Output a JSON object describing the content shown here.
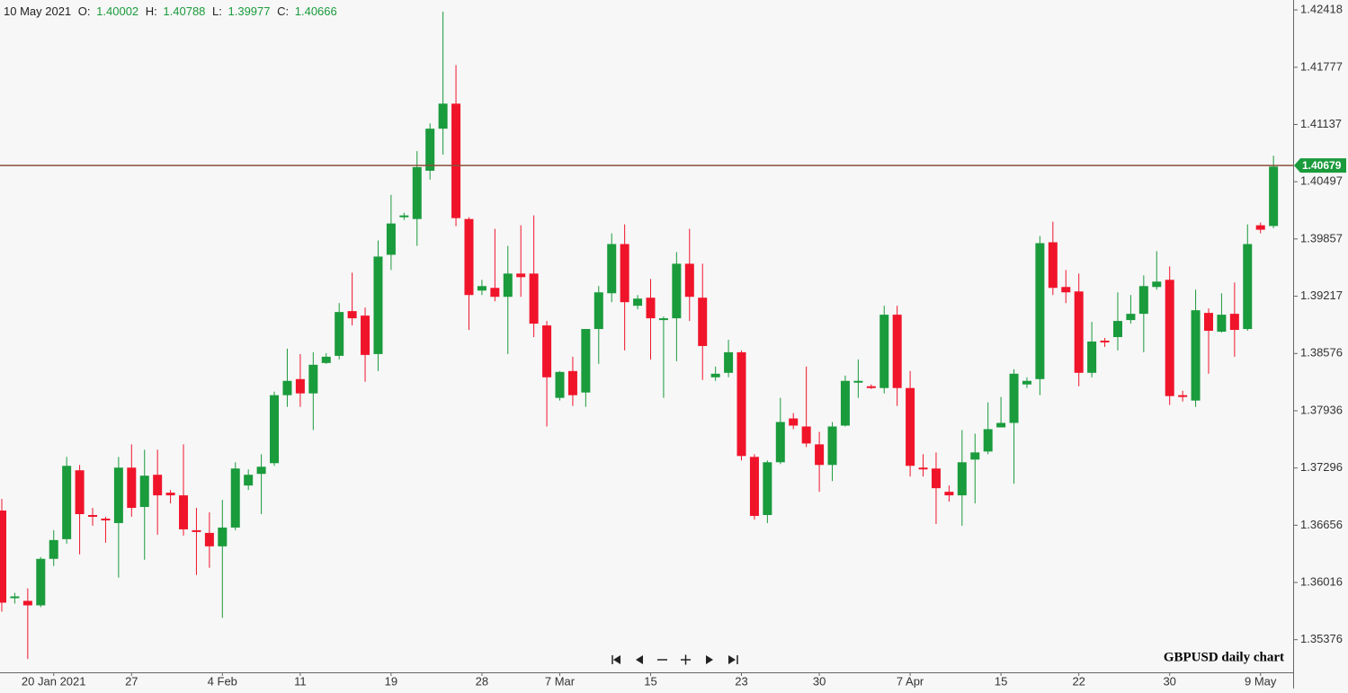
{
  "chart_data": {
    "type": "candlestick",
    "date_label": "10 May 2021",
    "ohlc_labels": [
      "O:",
      "H:",
      "L:",
      "C:"
    ],
    "annotation": "GBPUSD daily chart",
    "up_color": "#1a9b3c",
    "down_color": "#f0142a",
    "last_price": 1.40679,
    "last_price_line_color": "#8b4f3a",
    "categories": [
      null,
      null,
      null,
      null,
      "20 Jan 2021",
      null,
      null,
      null,
      null,
      null,
      "27",
      null,
      null,
      null,
      null,
      null,
      null,
      "4 Feb",
      null,
      null,
      null,
      null,
      null,
      "11",
      null,
      null,
      null,
      null,
      null,
      null,
      "19",
      null,
      null,
      null,
      null,
      null,
      null,
      "28",
      null,
      null,
      null,
      null,
      null,
      "7 Mar",
      null,
      null,
      null,
      null,
      null,
      null,
      "15",
      null,
      null,
      null,
      null,
      null,
      null,
      "23",
      null,
      null,
      null,
      null,
      null,
      "30",
      null,
      null,
      null,
      null,
      null,
      null,
      "7 Apr",
      null,
      null,
      null,
      null,
      null,
      null,
      "15",
      null,
      null,
      null,
      null,
      null,
      "22",
      null,
      null,
      null,
      null,
      null,
      null,
      "30",
      null,
      null,
      null,
      null,
      null,
      null,
      "9 May",
      null
    ],
    "open": [
      1.3682,
      1.3584,
      1.3581,
      1.3576,
      1.3628,
      1.365,
      1.3727,
      1.3677,
      1.3673,
      1.3668,
      1.373,
      1.3686,
      1.3722,
      1.3702,
      1.3699,
      1.366,
      1.3657,
      1.3642,
      1.3663,
      1.371,
      1.3723,
      1.3735,
      1.3811,
      1.3829,
      1.3813,
      1.3847,
      1.3855,
      1.3905,
      1.39,
      1.3857,
      1.3968,
      1.401,
      1.4008,
      1.4062,
      1.4109,
      1.4137,
      1.4008,
      1.3928,
      1.3931,
      1.3921,
      1.3947,
      1.3947,
      1.3889,
      1.3808,
      1.3838,
      1.3814,
      1.3885,
      1.3925,
      1.398,
      1.3911,
      1.392,
      1.3895,
      1.3897,
      1.3958,
      1.392,
      1.3831,
      1.3836,
      1.3859,
      1.3742,
      1.3677,
      1.3736,
      1.3785,
      1.3776,
      1.3756,
      1.3733,
      1.3777,
      1.3825,
      1.3821,
      1.3819,
      1.3901,
      1.3819,
      1.373,
      1.3729,
      1.3703,
      1.3699,
      1.3739,
      1.3748,
      1.3775,
      1.378,
      1.3823,
      1.3829,
      1.3982,
      1.3932,
      1.3927,
      1.3836,
      1.3872,
      1.3876,
      1.3895,
      1.3902,
      1.3932,
      1.394,
      1.3811,
      1.3805,
      1.3903,
      1.3882,
      1.3902,
      1.3885,
      1.4001,
      1.40002
    ],
    "high": [
      1.3695,
      1.359,
      1.3595,
      1.363,
      1.366,
      1.3742,
      1.3733,
      1.3685,
      1.3675,
      1.3742,
      1.3756,
      1.375,
      1.375,
      1.3705,
      1.3756,
      1.3685,
      1.368,
      1.3694,
      1.3736,
      1.3728,
      1.3745,
      1.3815,
      1.3863,
      1.3857,
      1.3859,
      1.3858,
      1.3914,
      1.3948,
      1.3909,
      1.3984,
      1.4035,
      1.4015,
      1.4084,
      1.4115,
      1.424,
      1.418,
      1.401,
      1.394,
      1.3997,
      1.3978,
      1.4001,
      1.4012,
      1.3894,
      1.3838,
      1.3854,
      1.3885,
      1.3933,
      1.3992,
      1.4002,
      1.3923,
      1.3941,
      1.3899,
      1.3971,
      1.3997,
      1.3958,
      1.3843,
      1.3873,
      1.3861,
      1.3745,
      1.3738,
      1.3808,
      1.3791,
      1.3843,
      1.377,
      1.3781,
      1.3833,
      1.3851,
      1.3823,
      1.3911,
      1.3911,
      1.3838,
      1.3745,
      1.3747,
      1.371,
      1.3772,
      1.3768,
      1.3803,
      1.3809,
      1.384,
      1.3831,
      1.3989,
      1.4005,
      1.3951,
      1.3947,
      1.3893,
      1.3875,
      1.3926,
      1.3923,
      1.3945,
      1.3972,
      1.3955,
      1.3816,
      1.3929,
      1.3908,
      1.3925,
      1.3937,
      1.4002,
      1.4004,
      1.40788
    ],
    "low": [
      1.3569,
      1.3578,
      1.3516,
      1.3574,
      1.362,
      1.3645,
      1.3633,
      1.3665,
      1.3646,
      1.3607,
      1.3675,
      1.3627,
      1.3655,
      1.369,
      1.3654,
      1.361,
      1.3618,
      1.3562,
      1.366,
      1.3705,
      1.3678,
      1.3732,
      1.3798,
      1.3798,
      1.3772,
      1.3846,
      1.3851,
      1.3889,
      1.3826,
      1.3838,
      1.3951,
      1.4007,
      1.3978,
      1.4052,
      1.408,
      1.4,
      1.3884,
      1.3923,
      1.3916,
      1.3857,
      1.3921,
      1.3876,
      1.3776,
      1.3805,
      1.3799,
      1.3798,
      1.3846,
      1.3915,
      1.3861,
      1.3907,
      1.3851,
      1.3808,
      1.3849,
      1.3894,
      1.3828,
      1.3827,
      1.3831,
      1.3738,
      1.3672,
      1.3668,
      1.3734,
      1.3773,
      1.3753,
      1.3703,
      1.3715,
      1.3776,
      1.3808,
      1.3818,
      1.3813,
      1.3799,
      1.372,
      1.372,
      1.3667,
      1.3692,
      1.3665,
      1.369,
      1.3745,
      1.3775,
      1.3712,
      1.3819,
      1.3811,
      1.3923,
      1.3914,
      1.3821,
      1.3831,
      1.3865,
      1.3861,
      1.3891,
      1.3859,
      1.3929,
      1.38,
      1.3804,
      1.3798,
      1.3835,
      1.3881,
      1.3854,
      1.3883,
      1.3992,
      1.39977
    ],
    "close": [
      1.3579,
      1.3586,
      1.3576,
      1.3628,
      1.3649,
      1.3732,
      1.3678,
      1.3675,
      1.3671,
      1.373,
      1.3685,
      1.3721,
      1.3699,
      1.3699,
      1.3661,
      1.3658,
      1.3642,
      1.3663,
      1.3729,
      1.3722,
      1.3731,
      1.3811,
      1.3827,
      1.3813,
      1.3845,
      1.3854,
      1.3904,
      1.3897,
      1.3856,
      1.3966,
      1.4003,
      1.4012,
      1.4066,
      1.4109,
      1.4137,
      1.4009,
      1.3923,
      1.3933,
      1.3921,
      1.3947,
      1.3943,
      1.3891,
      1.3831,
      1.3837,
      1.3811,
      1.3885,
      1.3926,
      1.398,
      1.3915,
      1.3919,
      1.3897,
      1.3897,
      1.3958,
      1.3921,
      1.3866,
      1.3835,
      1.3859,
      1.3743,
      1.3676,
      1.3736,
      1.3781,
      1.3777,
      1.3757,
      1.3733,
      1.3776,
      1.3827,
      1.3827,
      1.3819,
      1.3901,
      1.3819,
      1.3732,
      1.3728,
      1.3707,
      1.3699,
      1.3736,
      1.3747,
      1.3773,
      1.378,
      1.3835,
      1.3827,
      1.3981,
      1.3931,
      1.3926,
      1.3836,
      1.3871,
      1.387,
      1.3894,
      1.3902,
      1.3933,
      1.3938,
      1.381,
      1.3809,
      1.3906,
      1.3883,
      1.3901,
      1.3884,
      1.398,
      1.3996,
      1.40666
    ],
    "ylim": [
      1.35011,
      1.42529
    ],
    "yticks": [
      1.35376,
      1.36016,
      1.36656,
      1.37296,
      1.37936,
      1.38576,
      1.39217,
      1.39857,
      1.40497,
      1.41137,
      1.41777,
      1.42418
    ]
  }
}
